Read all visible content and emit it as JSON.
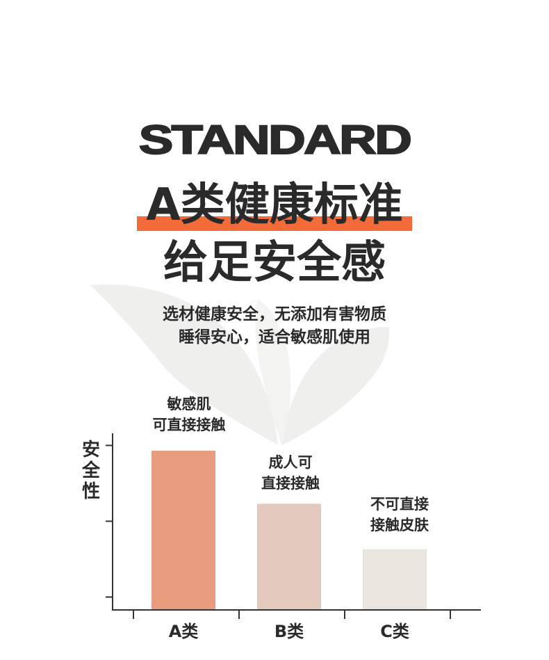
{
  "header": {
    "eyebrow": "STANDARD",
    "title_line1": "A类健康标准",
    "title_line2": "给足安全感",
    "subtitle_line1": "选材健康安全，无添加有害物质",
    "subtitle_line2": "睡得安心，适合敏感肌使用"
  },
  "colors": {
    "text": "#2a2a2a",
    "highlight": "#F26B38",
    "leaf": "#EFEFEE",
    "axis": "#333333"
  },
  "chart_data": {
    "type": "bar",
    "ylabel": "安全性",
    "xlabel": "",
    "categories": [
      "A类",
      "B类",
      "C类"
    ],
    "values": [
      2.1,
      1.4,
      0.8
    ],
    "ylim": [
      0,
      2.3
    ],
    "yticks_unlabeled": [
      0.17,
      1.17,
      2.17
    ],
    "bar_colors": [
      "#E89C7E",
      "#E3C8BC",
      "#EAE6DF"
    ],
    "annotations": [
      {
        "line1": "敏感肌",
        "line2": "可直接接触"
      },
      {
        "line1": "成人可",
        "line2": "直接接触"
      },
      {
        "line1": "不可直接",
        "line2": "接触皮肤"
      }
    ],
    "grid": false,
    "legend": "none"
  }
}
